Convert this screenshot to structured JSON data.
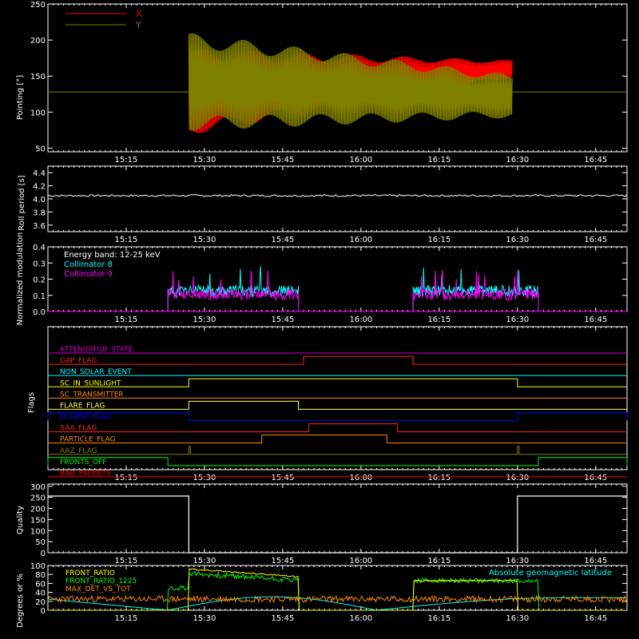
{
  "chart_data": [
    {
      "type": "line",
      "ylabel": "Pointing [°]",
      "ylim": [
        45,
        250
      ],
      "yticks": [
        50,
        100,
        150,
        200,
        250
      ],
      "xticks": [
        "15:15",
        "15:30",
        "15:45",
        "16:00",
        "16:15",
        "16:30",
        "16:45"
      ],
      "legend_placement": "top-left",
      "series": [
        {
          "name": "X",
          "color": "#ff0000",
          "center_start": 128,
          "center_end": 160,
          "amp_start": 60,
          "amp_end": 12
        },
        {
          "name": "Y",
          "color": "#808000",
          "center_start": 142,
          "center_end": 122,
          "amp_start": 68,
          "amp_end": 30
        }
      ],
      "baseline": 128,
      "active_start": "15:27",
      "active_end": "16:29"
    },
    {
      "type": "line",
      "ylabel": "Roll period [s]",
      "ylim": [
        3.5,
        4.5
      ],
      "yticks": [
        3.6,
        3.8,
        4.0,
        4.2,
        4.4
      ],
      "xticks": [
        "15:15",
        "15:30",
        "15:45",
        "16:00",
        "16:15",
        "16:30",
        "16:45"
      ],
      "series": [
        {
          "name": "",
          "value": 4.05,
          "color": "#ffffff"
        }
      ]
    },
    {
      "type": "line",
      "ylabel": "Normalized modulation",
      "ylim": [
        0,
        0.4
      ],
      "yticks": [
        0.0,
        0.1,
        0.2,
        0.3,
        0.4
      ],
      "xticks": [
        "15:15",
        "15:30",
        "15:45",
        "16:00",
        "16:15",
        "16:30",
        "16:45"
      ],
      "annotation": "Energy band: 12-25 keV",
      "legend_placement": "top-left",
      "series": [
        {
          "name": "Collimator 8",
          "color": "#00ffff",
          "segments": [
            [
              "15:23",
              "15:48"
            ],
            [
              "16:10",
              "16:34"
            ]
          ],
          "level": 0.12
        },
        {
          "name": "Collimator 9",
          "color": "#ff00ff",
          "segments": [
            [
              "15:23",
              "15:48"
            ],
            [
              "16:10",
              "16:34"
            ]
          ],
          "level": 0.1
        }
      ]
    },
    {
      "type": "line",
      "ylabel": "Flags",
      "xticks": [
        "15:15",
        "15:30",
        "15:45",
        "16:00",
        "16:15",
        "16:30",
        "16:45"
      ],
      "flags": [
        {
          "name": "ATTENUATOR_STATE",
          "color": "#cc00cc",
          "high": []
        },
        {
          "name": "GAP_FLAG",
          "color": "#ff2222",
          "high": [
            [
              "15:49",
              "16:10"
            ]
          ]
        },
        {
          "name": "NON_SOLAR_EVENT",
          "color": "#00ffff",
          "high": []
        },
        {
          "name": "SC_IN_SUNLIGHT",
          "color": "#ffff00",
          "high": [
            [
              "15:27",
              "16:30"
            ]
          ]
        },
        {
          "name": "SC_TRANSMITTER",
          "color": "#ff8800",
          "high": []
        },
        {
          "name": "FLARE_FLAG",
          "color": "#ffff66",
          "high": [
            [
              "15:27",
              "15:48"
            ]
          ]
        },
        {
          "name": "ECLIPSE_FLAG",
          "color": "#0000ff",
          "high": [
            [
              "15:00",
              "15:27"
            ],
            [
              "16:30",
              "16:51"
            ]
          ]
        },
        {
          "name": "SAA_FLAG",
          "color": "#ff2222",
          "high": [
            [
              "15:50",
              "16:07"
            ]
          ]
        },
        {
          "name": "PARTICLE_FLAG",
          "color": "#ff8800",
          "high": [
            [
              "15:41",
              "16:05"
            ]
          ]
        },
        {
          "name": "AAZ_FLAG",
          "color": "#808000",
          "high": [
            [
              "15:27",
              "15:27.3"
            ],
            [
              "16:30",
              "16:30.3"
            ]
          ]
        },
        {
          "name": "FRONTS_OFF",
          "color": "#00ff00",
          "high": [
            [
              "15:00",
              "15:23"
            ],
            [
              "16:34",
              "16:51"
            ]
          ]
        },
        {
          "name": "BAD_PACKETS",
          "color": "#ff0000",
          "high": []
        }
      ]
    },
    {
      "type": "line",
      "ylabel": "Quality",
      "ylim": [
        0,
        310
      ],
      "yticks": [
        0,
        50,
        100,
        150,
        200,
        250,
        300
      ],
      "xticks": [
        "15:15",
        "15:30",
        "15:45",
        "16:00",
        "16:15",
        "16:30",
        "16:45"
      ],
      "series": [
        {
          "name": "",
          "color": "#ffffff",
          "high_value": 256,
          "low_from": "15:27",
          "low_to": "16:30"
        }
      ]
    },
    {
      "type": "line",
      "ylabel": "Degrees or %",
      "ylim": [
        0,
        100
      ],
      "yticks": [
        0,
        20,
        40,
        60,
        80,
        100
      ],
      "xticks": [
        "15:15",
        "15:30",
        "15:45",
        "16:00",
        "16:15",
        "16:30",
        "16:45"
      ],
      "legend_placement": "top-left",
      "series": [
        {
          "name": "FRONT_RATIO",
          "color": "#ffff00"
        },
        {
          "name": "FRONT_RATIO_1225",
          "color": "#00ff00"
        },
        {
          "name": "MAX_DET_VS_TOT",
          "color": "#ff8800"
        },
        {
          "name": "Absolute geomagnetic latitude",
          "color": "#00ffff"
        }
      ]
    }
  ]
}
